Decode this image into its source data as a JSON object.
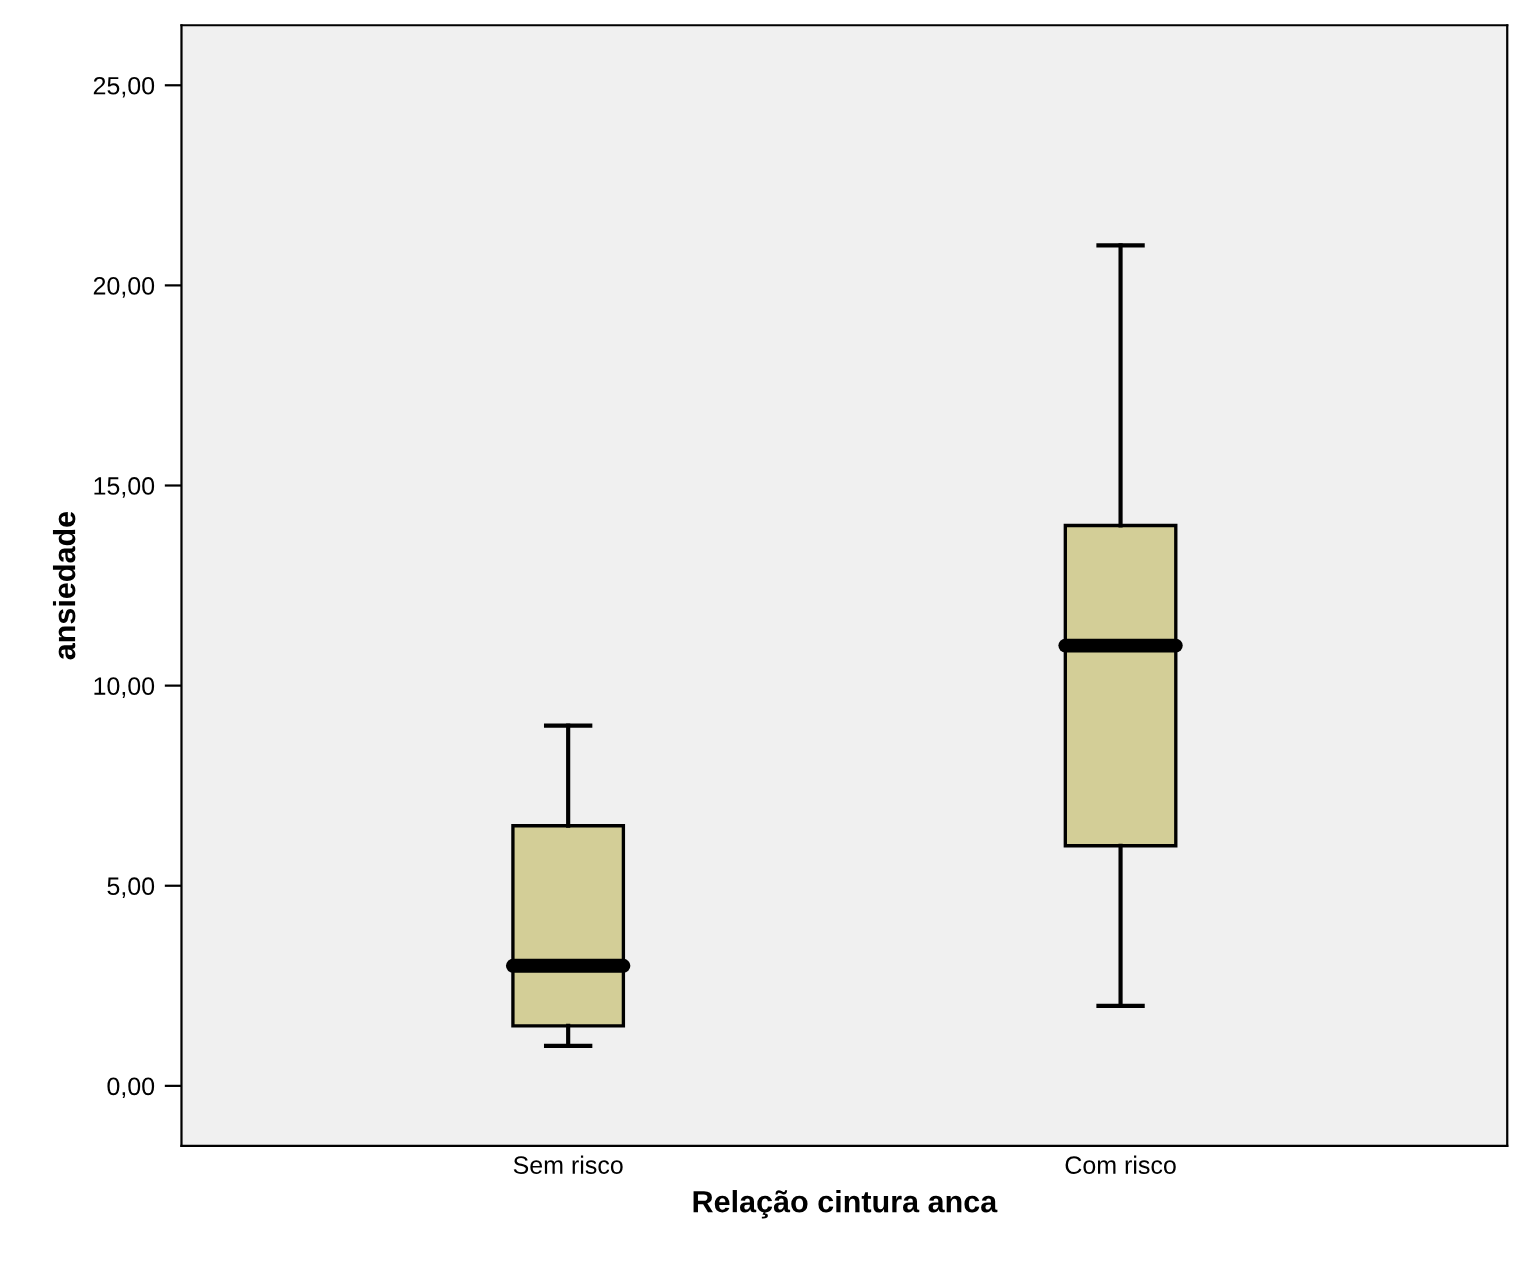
{
  "chart_data": {
    "type": "box",
    "xlabel": "Relação cintura anca",
    "ylabel": "ansiedade",
    "categories": [
      "Sem risco",
      "Com risco"
    ],
    "boxes": [
      {
        "low": 1.0,
        "q1": 1.5,
        "median": 3.0,
        "q3": 6.5,
        "high": 9.0
      },
      {
        "low": 2.0,
        "q1": 6.0,
        "median": 11.0,
        "q3": 14.0,
        "high": 21.0
      }
    ],
    "color": "#d3ce97",
    "ylim": [
      -1.5,
      26.5
    ],
    "yticks": [
      {
        "value": 0,
        "label": "0,00"
      },
      {
        "value": 5,
        "label": "5,00"
      },
      {
        "value": 10,
        "label": "10,00"
      },
      {
        "value": 15,
        "label": "15,00"
      },
      {
        "value": 20,
        "label": "20,00"
      },
      {
        "value": 25,
        "label": "25,00"
      }
    ],
    "grid": false
  }
}
